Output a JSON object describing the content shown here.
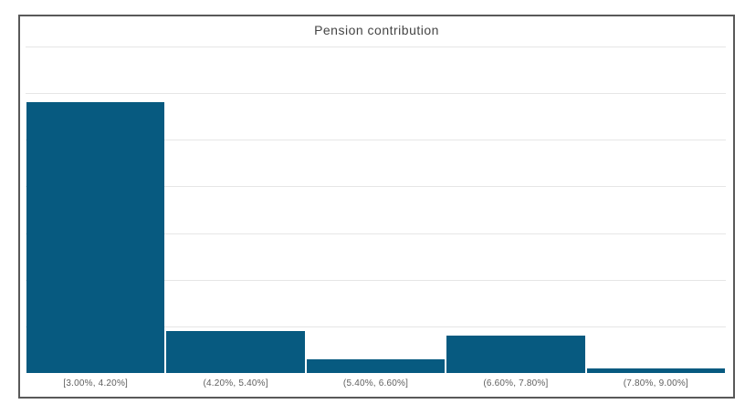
{
  "chart_data": {
    "type": "bar",
    "subtype": "histogram",
    "title": "Pension contribution",
    "categories": [
      "[3.00%, 4.20%]",
      "(4.20%, 5.40%]",
      "(5.40%, 6.60%]",
      "(6.60%, 7.80%]",
      "(7.80%, 9.00%]"
    ],
    "values": [
      58,
      9,
      3,
      8,
      1
    ],
    "xlabel": "",
    "ylabel": "",
    "ylim": [
      0,
      70
    ],
    "grid_step": 10,
    "grid": "horizontal-only",
    "legend": "none",
    "y_axis_labels_visible": false,
    "colors": {
      "bar": "#075A80",
      "gridline": "#E6E6E6",
      "frame_border": "#595959",
      "title_text": "#454545",
      "axis_label_text": "#606060",
      "background": "#FFFFFF"
    }
  }
}
